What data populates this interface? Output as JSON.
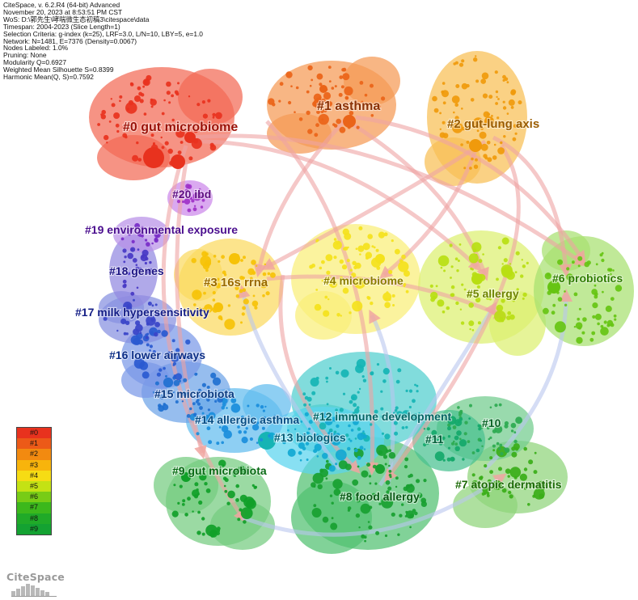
{
  "header_lines": [
    "CiteSpace, v. 6.2.R4 (64-bit) Advanced",
    "November 20, 2023 at 8:53:51 PM CST",
    "WoS: D:\\郭先生\\哮喘微生态初稿3\\citespace\\data",
    "Timespan: 2004-2023 (Slice Length=1)",
    "Selection Criteria: g-index (k=25), LRF=3.0, L/N=10, LBY=5, e=1.0",
    "Network: N=1481, E=7376 (Density=0.0067)",
    "Nodes Labeled: 1.0%",
    "Pruning: None",
    "Modularity Q=0.6927",
    "Weighted Mean Silhouette S=0.8399",
    "Harmonic Mean(Q, S)=0.7592"
  ],
  "clusters": [
    {
      "id": "#0",
      "label": "#0 gut microbiome",
      "color": "#e8321e",
      "blob": "#f26a55",
      "label_color": "#9b1208"
    },
    {
      "id": "#1",
      "label": "#1 asthma",
      "color": "#ea6418",
      "blob": "#f59a55",
      "label_color": "#8a3206"
    },
    {
      "id": "#2",
      "label": "#2 gut-lung axis",
      "color": "#f09a0c",
      "blob": "#f8bf55",
      "label_color": "#9a5c00"
    },
    {
      "id": "#3",
      "label": "#3 16s rrna",
      "color": "#f6c208",
      "blob": "#fbd960",
      "label_color": "#9a6a00"
    },
    {
      "id": "#4",
      "label": "#4 microbiome",
      "color": "#f4e21c",
      "blob": "#faef78",
      "label_color": "#8c7e00"
    },
    {
      "id": "#5",
      "label": "#5 allergy",
      "color": "#b8de12",
      "blob": "#dcf070",
      "label_color": "#6f8400"
    },
    {
      "id": "#6",
      "label": "#6 probiotics",
      "color": "#66c412",
      "blob": "#a8e070",
      "label_color": "#2f7d00"
    },
    {
      "id": "#7",
      "label": "#7 atopic dermatitis",
      "color": "#3aae18",
      "blob": "#8fd47a",
      "label_color": "#1c6a06"
    },
    {
      "id": "#8",
      "label": "#8 food allergy",
      "color": "#18a030",
      "blob": "#50c070",
      "label_color": "#0a5a16"
    },
    {
      "id": "#9",
      "label": "#9 gut microbiota",
      "color": "#10a028",
      "blob": "#74cc80",
      "label_color": "#086a14"
    },
    {
      "id": "#10",
      "label": "#10",
      "color": "#2caa50",
      "blob": "#72cc8e",
      "label_color": "#0c6428"
    },
    {
      "id": "#11",
      "label": "#11",
      "color": "#14a86a",
      "blob": "#48c090",
      "label_color": "#08603c"
    },
    {
      "id": "#12",
      "label": "#12 immune development",
      "color": "#16b4b4",
      "blob": "#50cfcf",
      "label_color": "#066464"
    },
    {
      "id": "#13",
      "label": "#13 biologics",
      "color": "#12a8d2",
      "blob": "#5ad4ee",
      "label_color": "#065e78"
    },
    {
      "id": "#14",
      "label": "#14 allergic asthma",
      "color": "#1a8edc",
      "blob": "#62bdee",
      "label_color": "#0a4e84"
    },
    {
      "id": "#15",
      "label": "#15 microbiota",
      "color": "#2070d0",
      "blob": "#6ea4e8",
      "label_color": "#0c3c82"
    },
    {
      "id": "#16",
      "label": "#16 lower airways",
      "color": "#2a5ad0",
      "blob": "#7a98e8",
      "label_color": "#0c2e86"
    },
    {
      "id": "#17",
      "label": "#17 milk hypersensitivity",
      "color": "#3a44c8",
      "blob": "#8690e0",
      "label_color": "#141e86"
    },
    {
      "id": "#18",
      "label": "#18 genes",
      "color": "#4838c4",
      "blob": "#9288e0",
      "label_color": "#1e1684"
    },
    {
      "id": "#19",
      "label": "#19 environmental exposure",
      "color": "#7a2cc8",
      "blob": "#b890e8",
      "label_color": "#4a0e8e"
    },
    {
      "id": "#20",
      "label": "#20 ibd",
      "color": "#a032c8",
      "blob": "#cc88ea",
      "label_color": "#5e0e82"
    }
  ],
  "legend": {
    "items": [
      {
        "label": "#0",
        "color": "#e8321e"
      },
      {
        "label": "#1",
        "color": "#ec5a18"
      },
      {
        "label": "#2",
        "color": "#f28a10"
      },
      {
        "label": "#3",
        "color": "#f8b40c"
      },
      {
        "label": "#4",
        "color": "#f6dc14"
      },
      {
        "label": "#5",
        "color": "#c4e214"
      },
      {
        "label": "#6",
        "color": "#78cc16"
      },
      {
        "label": "#7",
        "color": "#3cb81c"
      },
      {
        "label": "#8",
        "color": "#20aa28"
      },
      {
        "label": "#9",
        "color": "#14a232"
      }
    ]
  },
  "logo": {
    "text": "CiteSpace"
  }
}
